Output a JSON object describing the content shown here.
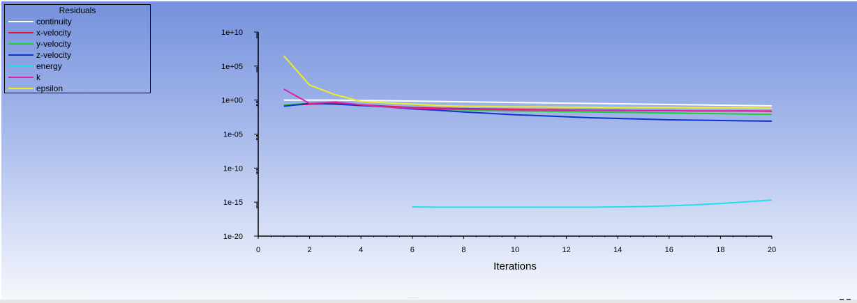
{
  "chart_data": {
    "type": "line",
    "title": "",
    "xlabel": "Iterations",
    "ylabel": "",
    "xlim": [
      0,
      20
    ],
    "ylim": [
      -20,
      10
    ],
    "log_scale_y": true,
    "y_tick_values": [
      -20,
      -15,
      -10,
      -5,
      0,
      5,
      10
    ],
    "x_ticks": [
      "0",
      "2",
      "4",
      "6",
      "8",
      "10",
      "12",
      "14",
      "16",
      "18",
      "20"
    ],
    "y_ticks": [
      "1e-20",
      "1e-15",
      "1e-10",
      "1e-05",
      "1e+00",
      "1e+05",
      "1e+10"
    ],
    "legend": {
      "title": "Residuals",
      "placement": "top-left"
    },
    "series": [
      {
        "name": "continuity",
        "color": "#ffffff",
        "x": [
          1,
          2,
          3,
          4,
          5,
          6,
          7,
          8,
          9,
          10,
          11,
          12,
          13,
          14,
          15,
          16,
          17,
          18,
          19,
          20
        ],
        "log10_y": [
          0,
          0,
          0,
          -0.05,
          -0.1,
          -0.15,
          -0.2,
          -0.25,
          -0.3,
          -0.35,
          -0.4,
          -0.45,
          -0.5,
          -0.55,
          -0.6,
          -0.65,
          -0.7,
          -0.75,
          -0.8,
          -0.85
        ]
      },
      {
        "name": "x-velocity",
        "color": "#dd1133",
        "x": [
          1,
          2,
          3,
          4,
          5,
          6,
          7,
          8,
          9,
          10,
          11,
          12,
          13,
          14,
          15,
          16,
          17,
          18,
          19,
          20
        ],
        "log10_y": [
          -0.8,
          -0.6,
          -0.5,
          -0.7,
          -0.9,
          -1.1,
          -1.2,
          -1.25,
          -1.3,
          -1.35,
          -1.4,
          -1.45,
          -1.5,
          -1.5,
          -1.55,
          -1.55,
          -1.6,
          -1.6,
          -1.6,
          -1.65
        ]
      },
      {
        "name": "y-velocity",
        "color": "#22cc33",
        "x": [
          1,
          2,
          3,
          4,
          5,
          6,
          7,
          8,
          9,
          10,
          11,
          12,
          13,
          14,
          15,
          16,
          17,
          18,
          19,
          20
        ],
        "log10_y": [
          -0.7,
          -0.5,
          -0.6,
          -0.8,
          -1.0,
          -1.2,
          -1.35,
          -1.45,
          -1.55,
          -1.6,
          -1.65,
          -1.7,
          -1.75,
          -1.8,
          -1.85,
          -1.9,
          -1.95,
          -2.0,
          -2.05,
          -2.1
        ]
      },
      {
        "name": "z-velocity",
        "color": "#1133cc",
        "x": [
          1,
          2,
          3,
          4,
          5,
          6,
          7,
          8,
          9,
          10,
          11,
          12,
          13,
          14,
          15,
          16,
          17,
          18,
          19,
          20
        ],
        "log10_y": [
          -0.9,
          -0.5,
          -0.6,
          -0.8,
          -1.0,
          -1.3,
          -1.5,
          -1.75,
          -1.95,
          -2.15,
          -2.3,
          -2.45,
          -2.6,
          -2.7,
          -2.8,
          -2.9,
          -2.95,
          -3.0,
          -3.05,
          -3.1
        ]
      },
      {
        "name": "energy",
        "color": "#22ddee",
        "x": [
          6,
          7,
          8,
          9,
          10,
          11,
          12,
          13,
          14,
          15,
          16,
          17,
          18,
          19,
          20
        ],
        "log10_y": [
          -15.7,
          -15.75,
          -15.75,
          -15.75,
          -15.75,
          -15.75,
          -15.75,
          -15.75,
          -15.7,
          -15.65,
          -15.55,
          -15.4,
          -15.2,
          -14.95,
          -14.7
        ]
      },
      {
        "name": "k",
        "color": "#dd22aa",
        "x": [
          1,
          2,
          3,
          4,
          5,
          6,
          7,
          8,
          9,
          10,
          11,
          12,
          13,
          14,
          15,
          16,
          17,
          18,
          19,
          20
        ],
        "log10_y": [
          1.6,
          -0.5,
          -0.3,
          -0.7,
          -1.0,
          -1.2,
          -1.3,
          -1.35,
          -1.4,
          -1.45,
          -1.45,
          -1.5,
          -1.5,
          -1.55,
          -1.55,
          -1.55,
          -1.6,
          -1.6,
          -1.6,
          -1.6
        ]
      },
      {
        "name": "epsilon",
        "color": "#eeee22",
        "x": [
          1,
          2,
          3,
          4,
          5,
          6,
          7,
          8,
          9,
          10,
          11,
          12,
          13,
          14,
          15,
          16,
          17,
          18,
          19,
          20
        ],
        "log10_y": [
          6.5,
          2.2,
          0.8,
          -0.2,
          -0.4,
          -0.6,
          -0.8,
          -0.9,
          -0.95,
          -1.0,
          -1.0,
          -1.05,
          -1.05,
          -1.1,
          -1.1,
          -1.1,
          -1.15,
          -1.15,
          -1.15,
          -1.2
        ]
      }
    ]
  }
}
